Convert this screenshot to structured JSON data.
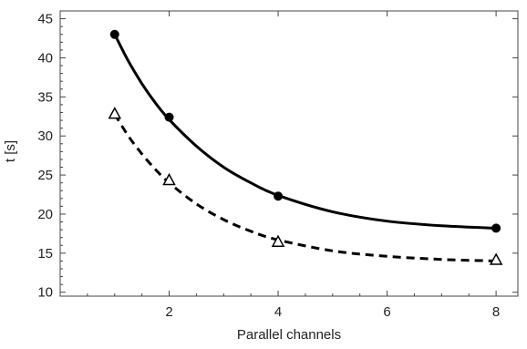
{
  "chart_data": {
    "type": "scatter",
    "title": "",
    "xlabel": "Parallel channels",
    "ylabel": "t [s]",
    "xlim": [
      0,
      8.4
    ],
    "ylim": [
      9.5,
      46
    ],
    "x_ticks": [
      2,
      4,
      6,
      8
    ],
    "y_ticks": [
      10,
      15,
      20,
      25,
      30,
      35,
      40,
      45
    ],
    "grid": false,
    "legend": "none",
    "series": [
      {
        "marker": "filled-circle",
        "line_style": "solid",
        "color": "#000000",
        "x": [
          1,
          2,
          4,
          8
        ],
        "y": [
          43.0,
          32.4,
          22.3,
          18.2
        ],
        "fit_curve": {
          "x": [
            1,
            1.25,
            1.5,
            1.75,
            2,
            2.5,
            3,
            3.5,
            4,
            5,
            6,
            7,
            8
          ],
          "y": [
            43.0,
            39.6,
            36.7,
            34.2,
            32.1,
            28.7,
            26.0,
            24.0,
            22.4,
            20.3,
            19.1,
            18.5,
            18.2
          ]
        }
      },
      {
        "marker": "open-triangle",
        "line_style": "dashed",
        "color": "#000000",
        "x": [
          1,
          2,
          4,
          8
        ],
        "y": [
          32.8,
          24.3,
          16.4,
          14.1
        ],
        "fit_curve": {
          "x": [
            1,
            1.25,
            1.5,
            1.75,
            2,
            2.5,
            3,
            3.5,
            4,
            5,
            6,
            7,
            8
          ],
          "y": [
            32.8,
            30.0,
            27.7,
            25.7,
            24.0,
            21.3,
            19.3,
            17.8,
            16.7,
            15.3,
            14.6,
            14.2,
            14.0
          ]
        }
      }
    ]
  }
}
